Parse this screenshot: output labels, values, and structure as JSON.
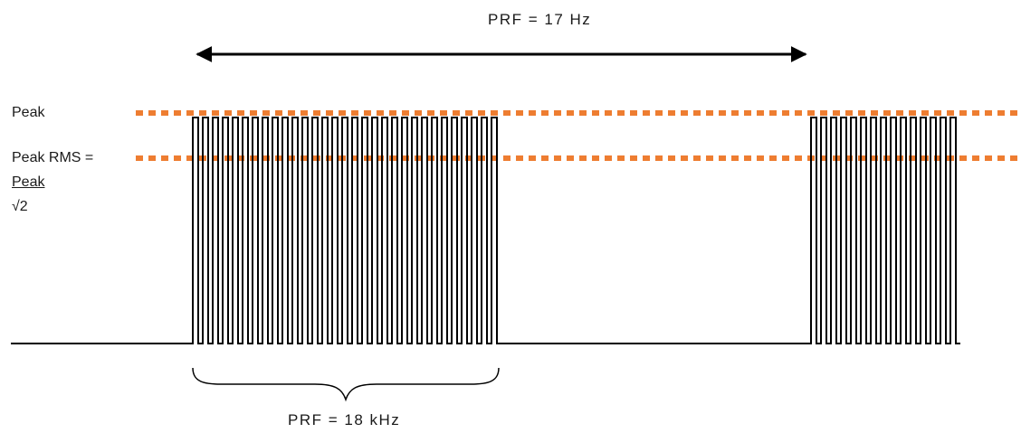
{
  "labels": {
    "prf_low": "PRF = 17 Hz",
    "prf_high": "PRF = 18 kHz",
    "peak": "Peak",
    "peak_rms": "Peak RMS =",
    "peak_fraction_numerator": "Peak",
    "peak_fraction_denominator": "√2"
  },
  "colors": {
    "waveform": "#000000",
    "reference_lines": "#EE7D31",
    "background": "#FFFFFF"
  }
}
